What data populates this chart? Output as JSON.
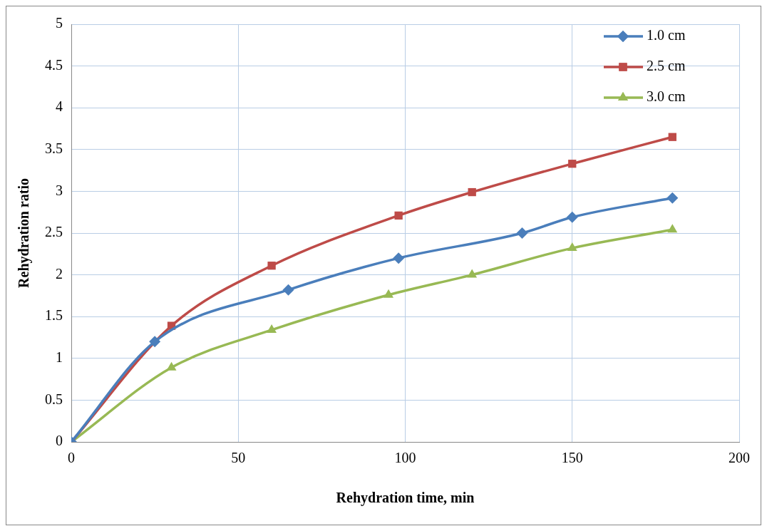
{
  "chart_data": {
    "type": "line",
    "xlabel": "Rehydration time, min",
    "ylabel": "Rehydration ratio",
    "xlim": [
      0,
      200
    ],
    "xticks": [
      0,
      50,
      100,
      150,
      200
    ],
    "ylim": [
      0,
      5
    ],
    "yticks": [
      0,
      0.5,
      1,
      1.5,
      2,
      2.5,
      3,
      3.5,
      4,
      4.5,
      5
    ],
    "grid": true,
    "legend": "top right",
    "series": [
      {
        "name": "1.0 cm",
        "color": "#4a7ebb",
        "marker": "diamond",
        "x": [
          0,
          25,
          65,
          98,
          135,
          150,
          180
        ],
        "values": [
          0,
          1.2,
          1.82,
          2.2,
          2.5,
          2.69,
          2.92
        ]
      },
      {
        "name": "2.5 cm",
        "color": "#be4b48",
        "marker": "square",
        "x": [
          0,
          30,
          60,
          98,
          120,
          150,
          180
        ],
        "values": [
          0,
          1.39,
          2.11,
          2.71,
          2.99,
          3.33,
          3.65
        ]
      },
      {
        "name": "3.0 cm",
        "color": "#98b954",
        "marker": "triangle",
        "x": [
          0,
          30,
          60,
          95,
          120,
          150,
          180
        ],
        "values": [
          0,
          0.89,
          1.34,
          1.76,
          2.0,
          2.32,
          2.54
        ]
      }
    ]
  }
}
